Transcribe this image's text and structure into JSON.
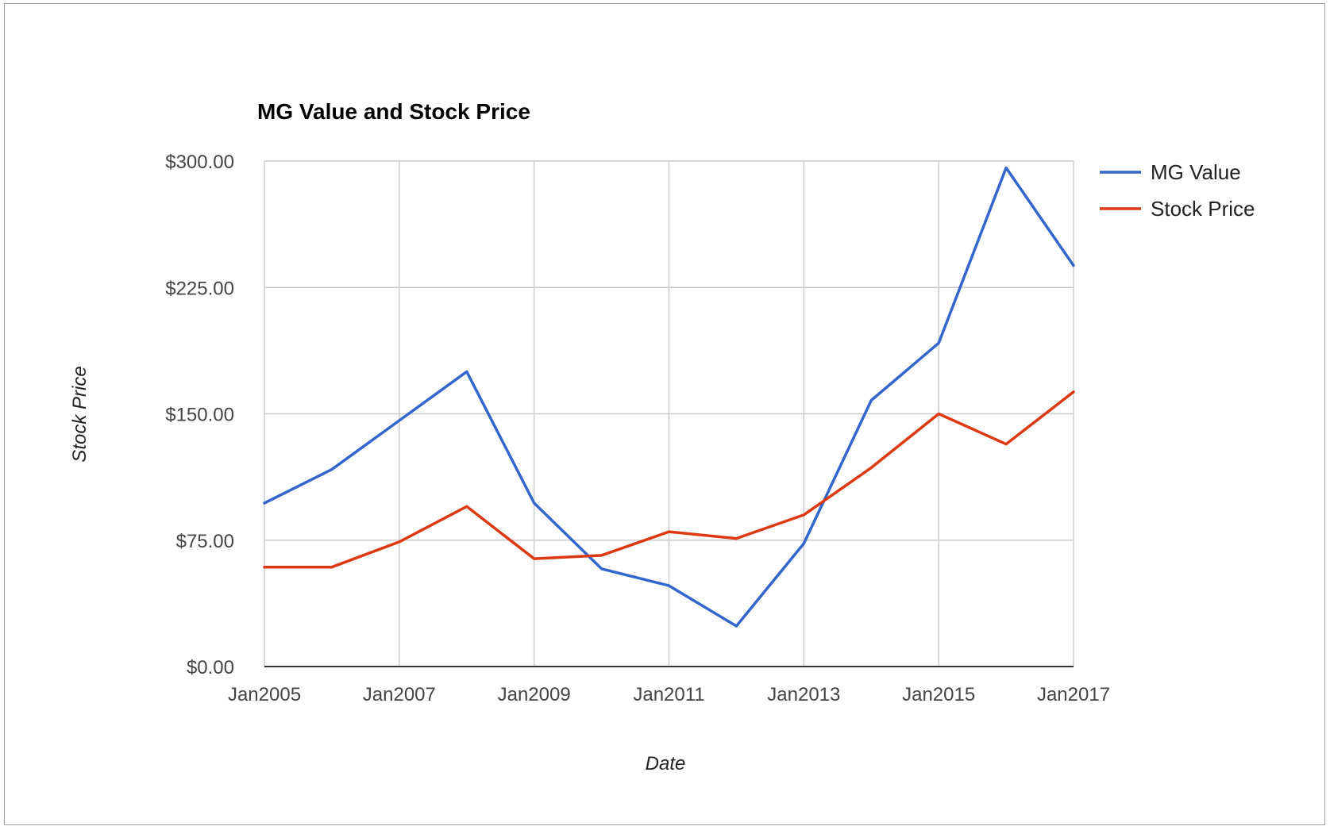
{
  "chart_data": {
    "type": "line",
    "title": "MG Value and Stock Price",
    "xlabel": "Date",
    "ylabel": "Stock Price",
    "x": [
      "2005-01",
      "2006-01",
      "2007-01",
      "2008-01",
      "2009-01",
      "2010-01",
      "2011-01",
      "2012-01",
      "2013-01",
      "2014-01",
      "2015-01",
      "2016-01",
      "2017-01"
    ],
    "x_ticks": [
      "Jan2005",
      "Jan2007",
      "Jan2009",
      "Jan2011",
      "Jan2013",
      "Jan2015",
      "Jan2017"
    ],
    "ylim": [
      0,
      300
    ],
    "y_ticks": [
      "$0.00",
      "$75.00",
      "$150.00",
      "$225.00",
      "$300.00"
    ],
    "grid": true,
    "legend_position": "right",
    "series": [
      {
        "name": "MG Value",
        "color": "#3366cc",
        "values": [
          97,
          117,
          146,
          175,
          97,
          58,
          48,
          24,
          73,
          158,
          192,
          296,
          238
        ]
      },
      {
        "name": "Stock Price",
        "color": "#dc3912",
        "values": [
          59,
          59,
          74,
          95,
          64,
          66,
          80,
          76,
          90,
          118,
          150,
          132,
          163
        ]
      }
    ]
  }
}
